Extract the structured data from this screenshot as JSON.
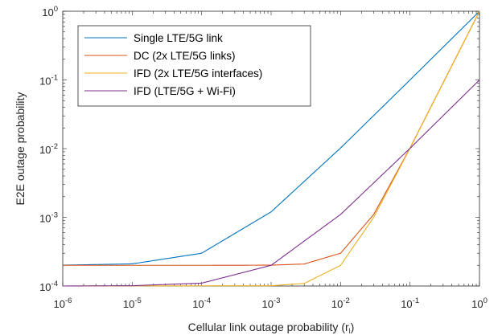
{
  "chart_data": {
    "type": "line",
    "xlabel": "Cellular link outage probability (r",
    "xlabel_sub": "l",
    "xlabel_close": ")",
    "ylabel": "E2E outage probability",
    "x_scale": "log",
    "y_scale": "log",
    "xlim": [
      1e-06,
      1
    ],
    "ylim": [
      0.0001,
      1
    ],
    "grid": false,
    "legend_position": "top-left",
    "x_ticks": [
      {
        "value": 1e-06,
        "base": "10",
        "exp": "-6"
      },
      {
        "value": 1e-05,
        "base": "10",
        "exp": "-5"
      },
      {
        "value": 0.0001,
        "base": "10",
        "exp": "-4"
      },
      {
        "value": 0.001,
        "base": "10",
        "exp": "-3"
      },
      {
        "value": 0.01,
        "base": "10",
        "exp": "-2"
      },
      {
        "value": 0.1,
        "base": "10",
        "exp": "-1"
      },
      {
        "value": 1,
        "base": "10",
        "exp": "0"
      }
    ],
    "y_ticks": [
      {
        "value": 0.0001,
        "base": "10",
        "exp": "-4"
      },
      {
        "value": 0.001,
        "base": "10",
        "exp": "-3"
      },
      {
        "value": 0.01,
        "base": "10",
        "exp": "-2"
      },
      {
        "value": 0.1,
        "base": "10",
        "exp": "-1"
      },
      {
        "value": 1,
        "base": "10",
        "exp": "0"
      }
    ],
    "series": [
      {
        "name": "Single LTE/5G link",
        "color": "#0072BD",
        "x": [
          1e-06,
          1e-05,
          0.0001,
          0.001,
          0.01,
          0.1,
          1
        ],
        "y": [
          0.000201,
          0.00021,
          0.0003,
          0.0012,
          0.0102,
          0.1001,
          1.0
        ]
      },
      {
        "name": "DC (2x LTE/5G links)",
        "color": "#D95319",
        "x": [
          1e-06,
          0.0001,
          0.001,
          0.003,
          0.01,
          0.03,
          0.1,
          1
        ],
        "y": [
          0.0002,
          0.0002,
          0.000201,
          0.000209,
          0.0003,
          0.0011,
          0.0102,
          1.0
        ]
      },
      {
        "name": "IFD (2x LTE/5G interfaces)",
        "color": "#EDB120",
        "x": [
          1e-06,
          0.001,
          0.003,
          0.01,
          0.03,
          0.1,
          1
        ],
        "y": [
          0.0001,
          0.000101,
          0.000109,
          0.0002,
          0.001,
          0.0101,
          1.0
        ]
      },
      {
        "name": "IFD (LTE/5G + Wi-Fi)",
        "color": "#7E2F8E",
        "x": [
          1e-06,
          1e-05,
          0.0001,
          0.001,
          0.01,
          0.1,
          1
        ],
        "y": [
          0.0001,
          0.000101,
          0.00011,
          0.0002,
          0.0011,
          0.0101,
          0.1
        ]
      }
    ]
  }
}
